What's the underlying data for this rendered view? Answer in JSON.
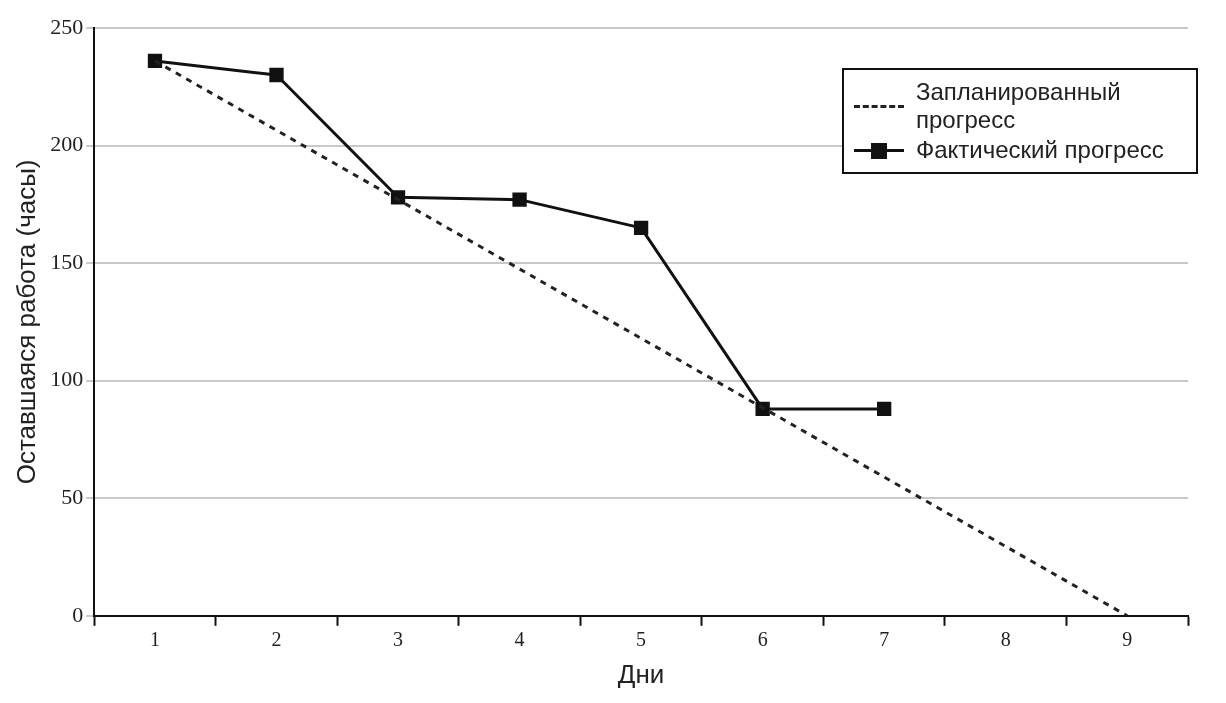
{
  "chart_data": {
    "type": "line",
    "xlabel": "Дни",
    "ylabel": "Оставшаяся работа (часы)",
    "categories": [
      "1",
      "2",
      "3",
      "4",
      "5",
      "6",
      "7",
      "8",
      "9"
    ],
    "ylim": [
      0,
      250
    ],
    "yticks": [
      0,
      50,
      100,
      150,
      200,
      250
    ],
    "grid": "y",
    "legend": "top right",
    "series": [
      {
        "name": "Запланированный прогресс",
        "color": "#222222",
        "line_style": "dashed",
        "marker": "none",
        "values": [
          236,
          206.5,
          177,
          147.5,
          118,
          88.5,
          59,
          29.5,
          0
        ]
      },
      {
        "name": "Фактический прогресс",
        "color": "#111111",
        "line_style": "solid",
        "marker": "square",
        "values": [
          236,
          230,
          178,
          177,
          165,
          88,
          88,
          null,
          null
        ]
      }
    ]
  }
}
